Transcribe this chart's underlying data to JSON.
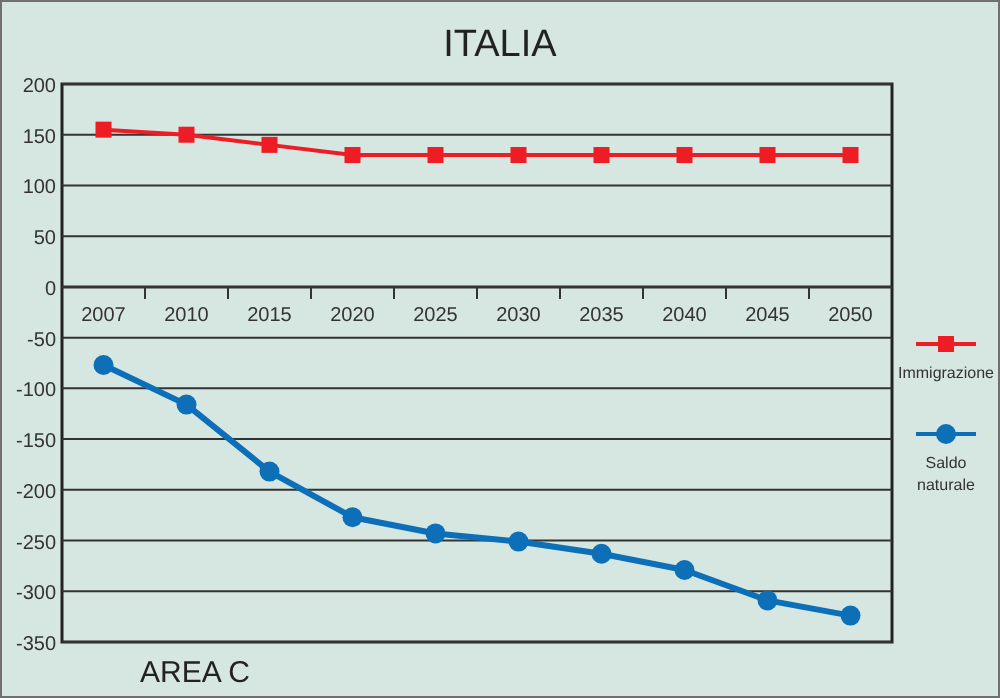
{
  "chart_data": {
    "type": "line",
    "title": "ITALIA",
    "categories": [
      "2007",
      "2010",
      "2015",
      "2020",
      "2025",
      "2030",
      "2035",
      "2040",
      "2045",
      "2050"
    ],
    "series": [
      {
        "name": "Immigrazione",
        "color": "#ee1c25",
        "marker": "square",
        "values": [
          155,
          150,
          140,
          130,
          130,
          130,
          130,
          130,
          130,
          130
        ]
      },
      {
        "name": "Saldo naturale",
        "color": "#0c6fb8",
        "marker": "circle",
        "values": [
          -77,
          -116,
          -182,
          -227,
          -243,
          -251,
          -263,
          -279,
          -309,
          -324
        ]
      }
    ],
    "ylim": [
      -350,
      200
    ],
    "yticks": [
      -350,
      -300,
      -250,
      -200,
      -150,
      -100,
      -50,
      0,
      50,
      100,
      150,
      200
    ],
    "grid": "y",
    "legend": "right",
    "annotations": [
      "AREA C"
    ]
  }
}
